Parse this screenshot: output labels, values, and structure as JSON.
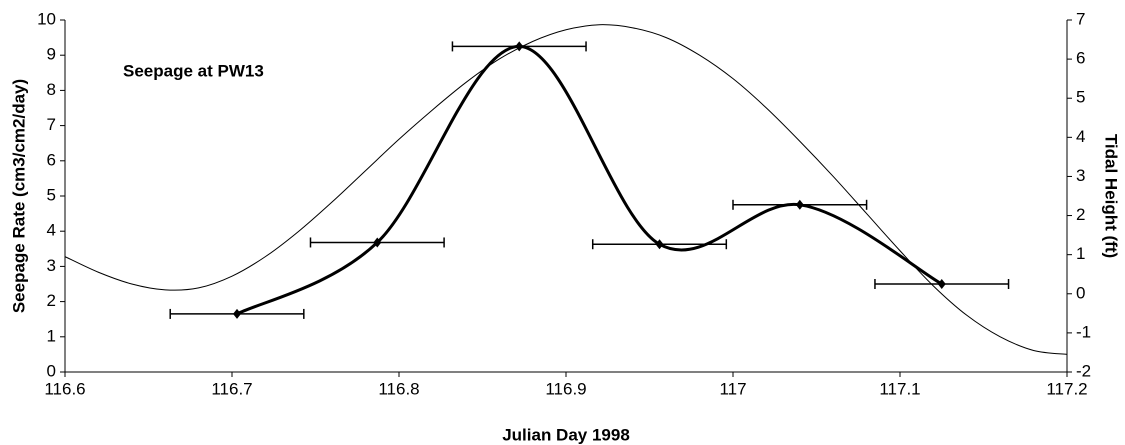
{
  "chart_data": {
    "type": "line",
    "title": "Seepage at PW13",
    "x_label": "Julian Day 1998",
    "y_label": "Seepage Rate (cm3/cm2/day)",
    "y2_label": "Tidal Height (ft)",
    "xlim": [
      116.6,
      117.2
    ],
    "xticks": [
      116.6,
      116.7,
      116.8,
      116.9,
      117,
      117.1,
      117.2
    ],
    "ylim": [
      0,
      10
    ],
    "yticks": [
      0,
      1,
      2,
      3,
      4,
      5,
      6,
      7,
      8,
      9,
      10
    ],
    "y2lim": [
      -2,
      7
    ],
    "y2ticks": [
      -2,
      -1,
      0,
      1,
      2,
      3,
      4,
      5,
      6,
      7
    ],
    "series": [
      {
        "name": "Seepage",
        "color": "#000000",
        "x": [
          116.703,
          116.787,
          116.872,
          116.956,
          117.04,
          117.125
        ],
        "values": [
          1.65,
          3.68,
          9.25,
          3.63,
          4.75,
          2.5
        ],
        "xerr": [
          0.04,
          0.04,
          0.04,
          0.04,
          0.04,
          0.04
        ]
      },
      {
        "name": "Tidal Height",
        "color": "#000000",
        "axis": "y2",
        "x": [
          116.6,
          116.62,
          116.64,
          116.66,
          116.68,
          116.7,
          116.72,
          116.74,
          116.76,
          116.78,
          116.8,
          116.82,
          116.84,
          116.86,
          116.88,
          116.9,
          116.92,
          116.94,
          116.96,
          116.98,
          117.0,
          117.02,
          117.04,
          117.06,
          117.08,
          117.1,
          117.12,
          117.14,
          117.16,
          117.18,
          117.2
        ],
        "values": [
          0.95,
          0.55,
          0.25,
          0.1,
          0.15,
          0.45,
          0.95,
          1.6,
          2.35,
          3.15,
          3.95,
          4.7,
          5.4,
          6.0,
          6.45,
          6.75,
          6.88,
          6.8,
          6.55,
          6.1,
          5.5,
          4.75,
          3.9,
          3.0,
          2.05,
          1.1,
          0.2,
          -0.55,
          -1.1,
          -1.45,
          -1.55
        ]
      }
    ]
  }
}
